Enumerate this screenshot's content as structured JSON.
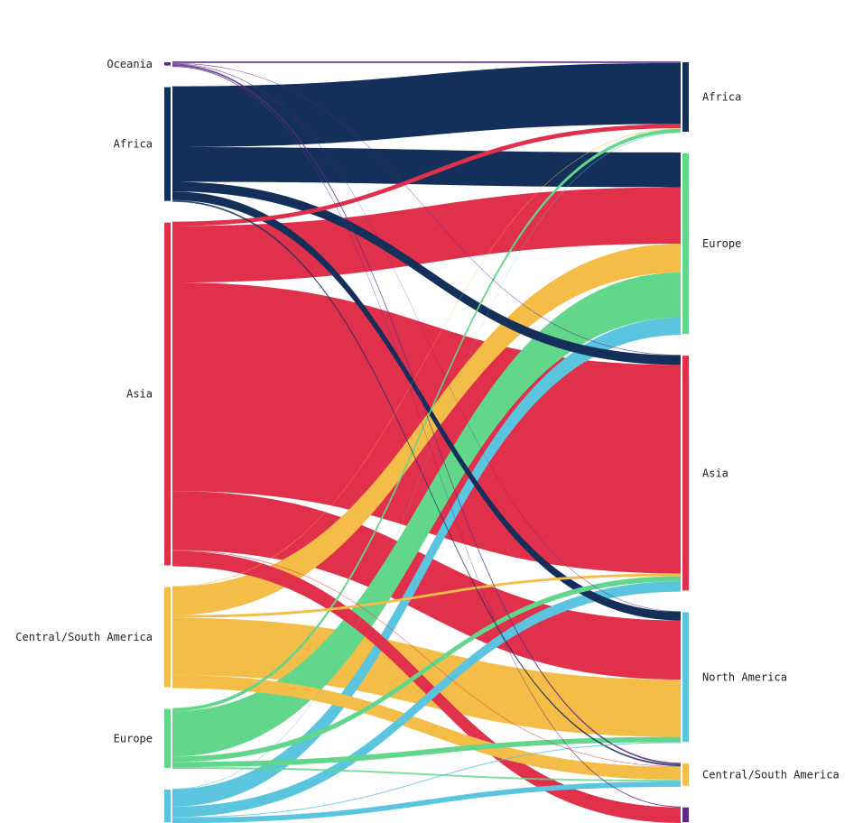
{
  "diagram": {
    "type": "sankey",
    "colors": {
      "Oceania": "#5b2a86",
      "Africa": "#14305a",
      "Asia": "#e0304b",
      "Central/South America": "#f4bd47",
      "Europe": "#62d68a",
      "North America": "#5bc4de"
    },
    "sources": [
      {
        "key": "Oceania",
        "label": "Oceania"
      },
      {
        "key": "Africa",
        "label": "Africa"
      },
      {
        "key": "Asia",
        "label": "Asia"
      },
      {
        "key": "Central/South America",
        "label": "Central/South America"
      },
      {
        "key": "Europe",
        "label": "Europe"
      },
      {
        "key": "North America",
        "label": ""
      }
    ],
    "targets": [
      {
        "key": "Africa",
        "label": "Africa"
      },
      {
        "key": "Europe",
        "label": "Europe"
      },
      {
        "key": "Asia",
        "label": "Asia"
      },
      {
        "key": "North America",
        "label": "North America"
      },
      {
        "key": "Central/South America",
        "label": "Central/South America"
      },
      {
        "key": "Oceania",
        "label": ""
      }
    ],
    "flows": [
      {
        "from": "Oceania",
        "to": "Africa",
        "value": 2
      },
      {
        "from": "Oceania",
        "to": "Asia",
        "value": 0.3
      },
      {
        "from": "Oceania",
        "to": "North America",
        "value": 0.5
      },
      {
        "from": "Oceania",
        "to": "Central/South America",
        "value": 2
      },
      {
        "from": "Oceania",
        "to": "Oceania",
        "value": 1
      },
      {
        "from": "Africa",
        "to": "Africa",
        "value": 70
      },
      {
        "from": "Africa",
        "to": "Europe",
        "value": 40
      },
      {
        "from": "Africa",
        "to": "Asia",
        "value": 11
      },
      {
        "from": "Africa",
        "to": "North America",
        "value": 10
      },
      {
        "from": "Africa",
        "to": "Central/South America",
        "value": 2
      },
      {
        "from": "Asia",
        "to": "Africa",
        "value": 5
      },
      {
        "from": "Asia",
        "to": "Europe",
        "value": 65
      },
      {
        "from": "Asia",
        "to": "Asia",
        "value": 240
      },
      {
        "from": "Asia",
        "to": "North America",
        "value": 68
      },
      {
        "from": "Asia",
        "to": "Central/South America",
        "value": 0.5
      },
      {
        "from": "Asia",
        "to": "Oceania",
        "value": 18
      },
      {
        "from": "Central/South America",
        "to": "Africa",
        "value": 0.5
      },
      {
        "from": "Central/South America",
        "to": "Europe",
        "value": 33
      },
      {
        "from": "Central/South America",
        "to": "Asia",
        "value": 3
      },
      {
        "from": "Central/South America",
        "to": "North America",
        "value": 66
      },
      {
        "from": "Central/South America",
        "to": "Central/South America",
        "value": 15
      },
      {
        "from": "Europe",
        "to": "Africa",
        "value": 4
      },
      {
        "from": "Europe",
        "to": "Europe",
        "value": 52
      },
      {
        "from": "Europe",
        "to": "Asia",
        "value": 6
      },
      {
        "from": "Europe",
        "to": "North America",
        "value": 6
      },
      {
        "from": "Europe",
        "to": "Central/South America",
        "value": 2
      },
      {
        "from": "North America",
        "to": "Africa",
        "value": 0.5
      },
      {
        "from": "North America",
        "to": "Europe",
        "value": 20
      },
      {
        "from": "North America",
        "to": "Asia",
        "value": 12
      },
      {
        "from": "North America",
        "to": "North America",
        "value": 1
      },
      {
        "from": "North America",
        "to": "Central/South America",
        "value": 6
      }
    ]
  }
}
